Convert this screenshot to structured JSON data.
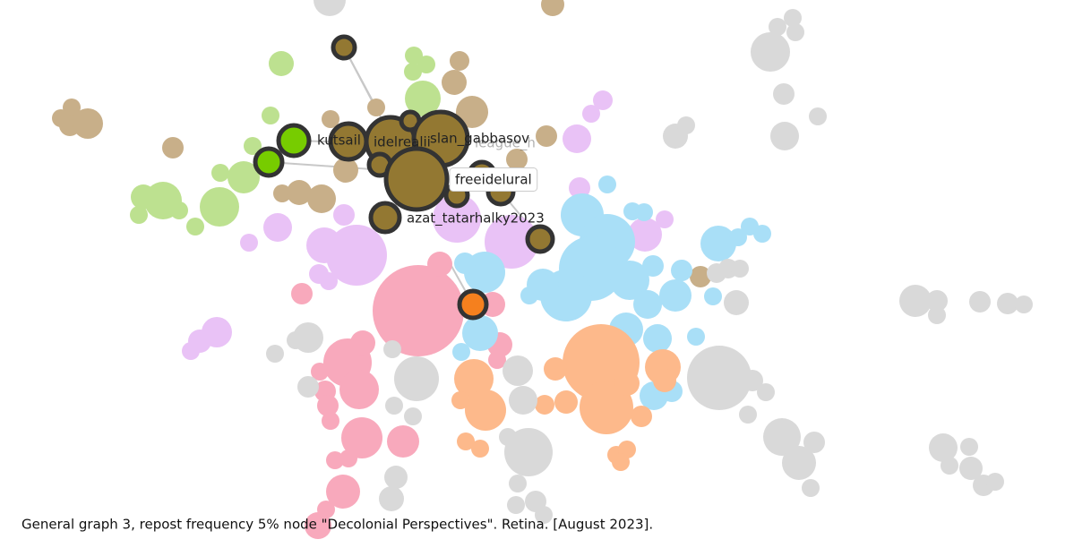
{
  "nodes": [
    {
      "label": "kutsail"
    },
    {
      "label": "idelrealii"
    },
    {
      "label": "slan_gabbasov"
    },
    {
      "label": "league_h"
    },
    {
      "label": "freeidelural"
    },
    {
      "label": "azat_tatarhalky2023"
    }
  ],
  "caption": "General graph 3, repost frequency 5% node \"Decolonial Perspectives\". Retina. [August 2023]."
}
